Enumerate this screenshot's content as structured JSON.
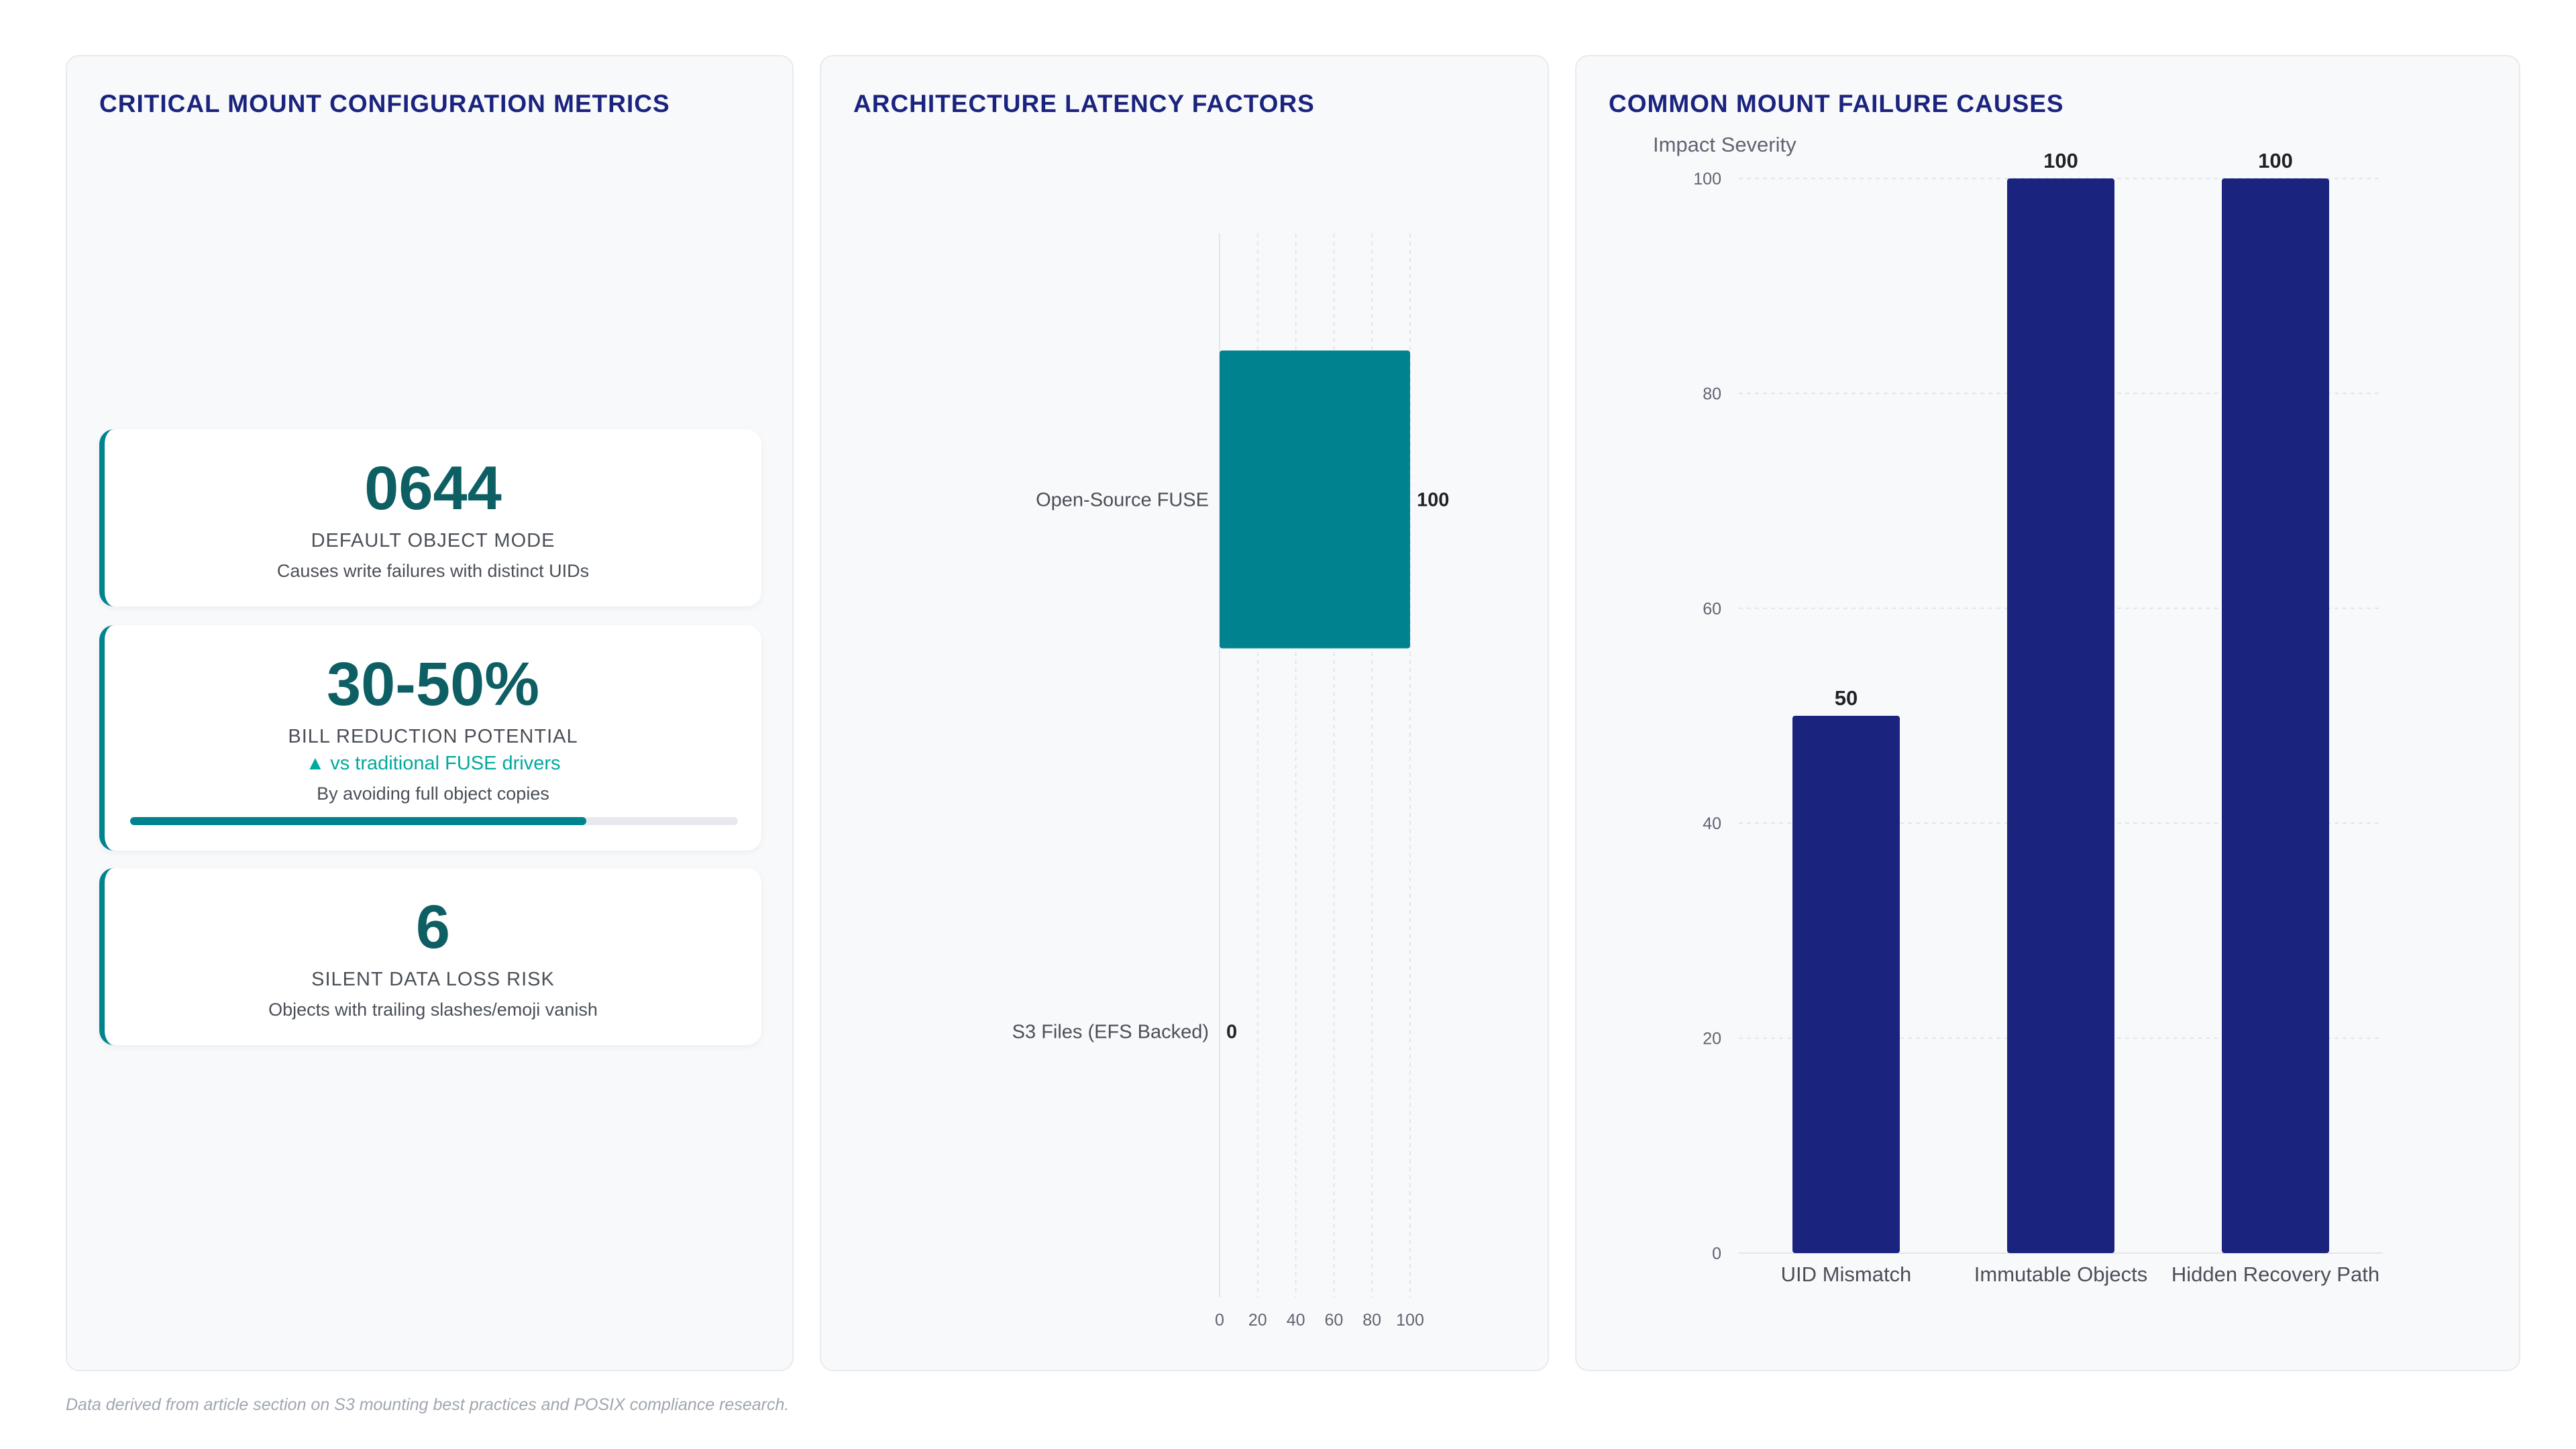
{
  "panels": {
    "metrics_title": "CRITICAL MOUNT CONFIGURATION METRICS",
    "latency_title": "ARCHITECTURE LATENCY FACTORS",
    "failure_title": "COMMON MOUNT FAILURE CAUSES"
  },
  "kpis": [
    {
      "value": "0644",
      "label": "DEFAULT OBJECT MODE",
      "sub": "Causes write failures with distinct UIDs"
    },
    {
      "value": "30-50%",
      "label": "BILL REDUCTION POTENTIAL",
      "trend": "▲ vs traditional FUSE drivers",
      "sub": "By avoiding full object copies",
      "progress": 0.75
    },
    {
      "value": "6",
      "label": "SILENT DATA LOSS RISK",
      "sub": "Objects with trailing slashes/emoji vanish"
    }
  ],
  "colors": {
    "accent": "#00838f",
    "navy": "#1a237e",
    "kpi_value": "#0d5f63",
    "trend": "#00a99d"
  },
  "chart_data": [
    {
      "type": "bar",
      "orientation": "horizontal",
      "categories": [
        "Open-Source FUSE",
        "S3 Files (EFS Backed)"
      ],
      "values": [
        100,
        0
      ],
      "xlim": [
        0,
        100
      ],
      "xticks": [
        0,
        20,
        40,
        60,
        80,
        100
      ],
      "color": "#00838f",
      "grid": "vertical dashed",
      "title": "ARCHITECTURE LATENCY FACTORS"
    },
    {
      "type": "bar",
      "categories": [
        "UID Mismatch",
        "Immutable Objects",
        "Hidden Recovery Path"
      ],
      "values": [
        50,
        100,
        100
      ],
      "ylabel": "Impact Severity",
      "ylim": [
        0,
        100
      ],
      "yticks": [
        0,
        20,
        40,
        60,
        80,
        100
      ],
      "color": "#1a237e",
      "grid": "horizontal dashed",
      "title": "COMMON MOUNT FAILURE CAUSES"
    }
  ],
  "footnote": "Data derived from article section on S3 mounting best practices and POSIX compliance research."
}
